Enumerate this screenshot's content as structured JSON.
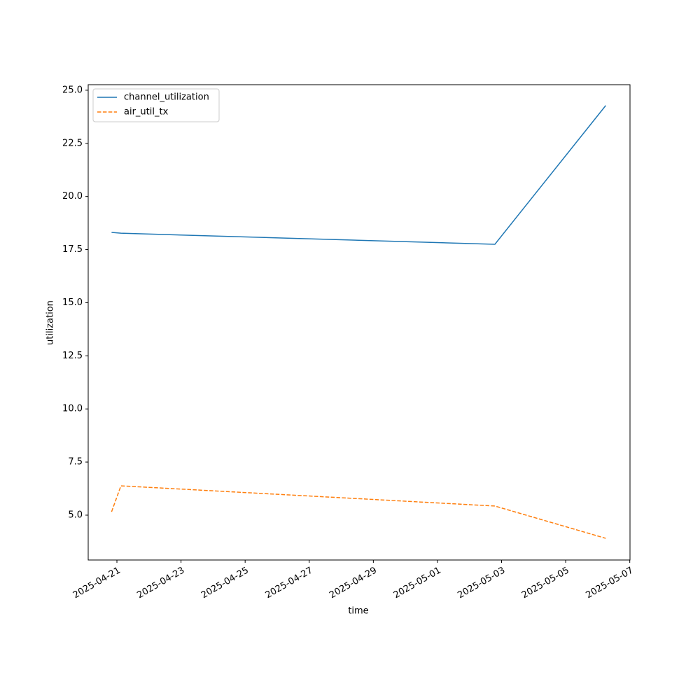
{
  "chart_data": {
    "type": "line",
    "x": [
      "2025-04-20T20:00",
      "2025-04-21T03:00",
      "2025-05-02T19:00",
      "2025-05-06T06:00"
    ],
    "series": [
      {
        "name": "channel_utilization",
        "color": "#1f77b4",
        "dash": "solid",
        "values": [
          18.31,
          18.27,
          17.75,
          24.28
        ]
      },
      {
        "name": "air_util_tx",
        "color": "#ff7f0e",
        "dash": "dashed",
        "values": [
          5.16,
          6.38,
          5.43,
          3.91
        ]
      }
    ],
    "xlabel": "time",
    "ylabel": "utilization",
    "xlim": [
      "2025-04-20T02:30",
      "2025-05-07T00:10"
    ],
    "xticks": [
      "2025-04-21",
      "2025-04-23",
      "2025-04-25",
      "2025-04-27",
      "2025-04-29",
      "2025-05-01",
      "2025-05-03",
      "2025-05-05",
      "2025-05-07"
    ],
    "ylim": [
      2.89,
      25.26
    ],
    "yticks": [
      {
        "value": 5,
        "label": "5.0"
      },
      {
        "value": 7.5,
        "label": "7.5"
      },
      {
        "value": 10,
        "label": "10.0"
      },
      {
        "value": 12.5,
        "label": "12.5"
      },
      {
        "value": 15,
        "label": "15.0"
      },
      {
        "value": 17.5,
        "label": "17.5"
      },
      {
        "value": 20,
        "label": "20.0"
      },
      {
        "value": 22.5,
        "label": "22.5"
      },
      {
        "value": 25,
        "label": "25.0"
      }
    ],
    "legend": "upper left",
    "grid": false
  }
}
